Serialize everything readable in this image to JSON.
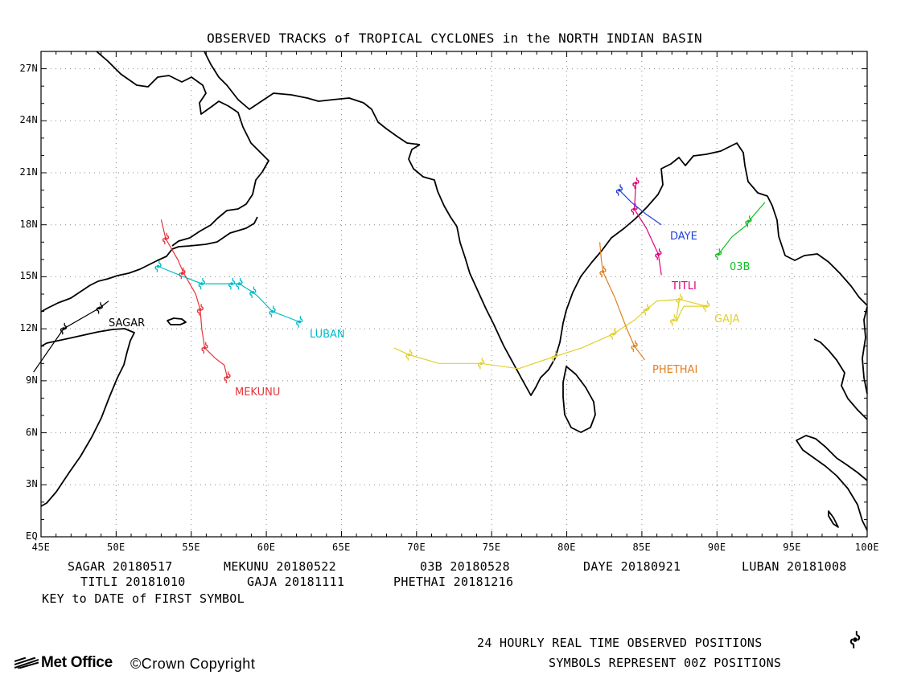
{
  "title": "OBSERVED TRACKS of TROPICAL CYCLONES in the NORTH INDIAN BASIN",
  "axes": {
    "lon_labels": [
      "45E",
      "50E",
      "55E",
      "60E",
      "65E",
      "70E",
      "75E",
      "80E",
      "85E",
      "90E",
      "95E",
      "100E"
    ],
    "lat_labels": [
      "EQ",
      "3N",
      "6N",
      "9N",
      "12N",
      "15N",
      "18N",
      "21N",
      "24N",
      "27N"
    ]
  },
  "storm_labels": {
    "sagar": "SAGAR",
    "mekunu": "MEKUNU",
    "luban": "LUBAN",
    "gaja": "GAJA",
    "phethai": "PHETHAI",
    "titli": "TITLI",
    "daye": "DAYE",
    "b03": "03B"
  },
  "legend": {
    "sagar": "SAGAR 20180517",
    "mekunu": "MEKUNU 20180522",
    "b03": "03B 20180528",
    "daye": "DAYE 20180921",
    "luban": "LUBAN 20181008",
    "titli": "TITLI 20181010",
    "gaja": "GAJA 20181111",
    "phethai": "PHETHAI 20181216",
    "key_note": "KEY to DATE of FIRST SYMBOL"
  },
  "footer": {
    "note_line1": "24 HOURLY REAL TIME OBSERVED POSITIONS",
    "note_line2": "SYMBOLS REPRESENT 00Z POSITIONS",
    "logo_text": "Met Office",
    "copyright": "©Crown Copyright"
  },
  "colors": {
    "sagar": "#000000",
    "mekunu": "#e8333a",
    "luban": "#00bcc8",
    "gaja": "#e0d030",
    "phethai": "#e08020",
    "titli": "#e0007a",
    "daye": "#2040e0",
    "b03": "#10c020"
  },
  "tracks": {
    "sagar": {
      "line": [
        [
          44.5,
          9.5
        ],
        [
          46.5,
          12.0
        ],
        [
          48.9,
          13.2
        ],
        [
          49.5,
          13.6
        ]
      ],
      "symbols": [
        [
          46.5,
          12.0
        ],
        [
          48.9,
          13.2
        ]
      ]
    },
    "mekunu": {
      "line": [
        [
          53.0,
          18.3
        ],
        [
          53.3,
          17.2
        ],
        [
          54.1,
          16.0
        ],
        [
          54.5,
          15.2
        ],
        [
          55.3,
          14.0
        ],
        [
          55.6,
          13.1
        ],
        [
          55.7,
          12.0
        ],
        [
          55.9,
          10.9
        ],
        [
          56.6,
          10.3
        ],
        [
          57.2,
          9.9
        ],
        [
          57.4,
          9.2
        ]
      ],
      "symbols": [
        [
          53.3,
          17.2
        ],
        [
          54.4,
          15.2
        ],
        [
          55.6,
          13.1
        ],
        [
          55.9,
          10.9
        ],
        [
          57.4,
          9.2
        ]
      ]
    },
    "luban": {
      "line": [
        [
          52.8,
          15.6
        ],
        [
          54.5,
          15.0
        ],
        [
          55.7,
          14.6
        ],
        [
          57.7,
          14.6
        ],
        [
          58.2,
          14.6
        ],
        [
          59.1,
          14.1
        ],
        [
          59.4,
          13.9
        ],
        [
          60.4,
          13.0
        ],
        [
          61.3,
          12.7
        ],
        [
          62.2,
          12.4
        ]
      ],
      "symbols": [
        [
          52.8,
          15.6
        ],
        [
          55.7,
          14.6
        ],
        [
          57.7,
          14.6
        ],
        [
          58.2,
          14.6
        ],
        [
          59.1,
          14.1
        ],
        [
          60.4,
          13.0
        ],
        [
          62.2,
          12.4
        ]
      ]
    },
    "gaja": {
      "line": [
        [
          68.5,
          10.9
        ],
        [
          69.5,
          10.5
        ],
        [
          71.5,
          10.0
        ],
        [
          74.3,
          10.0
        ],
        [
          76.8,
          9.7
        ],
        [
          78.5,
          10.2
        ],
        [
          79.2,
          10.4
        ],
        [
          81.0,
          10.9
        ],
        [
          83.1,
          11.7
        ],
        [
          84.5,
          12.5
        ],
        [
          85.3,
          13.1
        ],
        [
          86.0,
          13.6
        ],
        [
          87.5,
          13.7
        ],
        [
          89.3,
          13.3
        ],
        [
          87.8,
          13.3
        ],
        [
          87.6,
          13.0
        ],
        [
          87.3,
          12.4
        ],
        [
          87.3,
          12.6
        ],
        [
          87.5,
          13.7
        ]
      ],
      "symbols": [
        [
          69.5,
          10.5
        ],
        [
          74.3,
          10.0
        ],
        [
          79.2,
          10.4
        ],
        [
          83.1,
          11.7
        ],
        [
          85.3,
          13.1
        ],
        [
          87.5,
          13.7
        ],
        [
          89.3,
          13.3
        ],
        [
          87.1,
          12.5
        ]
      ]
    },
    "phethai": {
      "line": [
        [
          82.2,
          17.0
        ],
        [
          82.3,
          16.0
        ],
        [
          82.4,
          15.3
        ],
        [
          83.2,
          13.8
        ],
        [
          84.0,
          12.0
        ],
        [
          84.5,
          11.0
        ],
        [
          85.2,
          10.2
        ]
      ],
      "symbols": [
        [
          82.4,
          15.3
        ],
        [
          84.5,
          11.0
        ]
      ]
    },
    "titli": {
      "line": [
        [
          84.6,
          20.3
        ],
        [
          84.5,
          18.9
        ],
        [
          85.3,
          17.8
        ],
        [
          86.1,
          16.3
        ],
        [
          86.3,
          15.1
        ]
      ],
      "symbols": [
        [
          84.6,
          20.4
        ],
        [
          84.5,
          18.9
        ],
        [
          86.1,
          16.3
        ]
      ]
    },
    "daye": {
      "line": [
        [
          83.5,
          20.0
        ],
        [
          84.3,
          19.3
        ],
        [
          85.3,
          18.6
        ],
        [
          86.3,
          18.0
        ]
      ],
      "symbols": [
        [
          83.5,
          20.0
        ]
      ]
    },
    "b03": {
      "line": [
        [
          90.1,
          16.3
        ],
        [
          91.0,
          17.3
        ],
        [
          92.0,
          18.0
        ],
        [
          92.3,
          18.4
        ],
        [
          93.2,
          19.3
        ]
      ],
      "symbols": [
        [
          90.1,
          16.3
        ],
        [
          92.1,
          18.2
        ]
      ]
    }
  }
}
